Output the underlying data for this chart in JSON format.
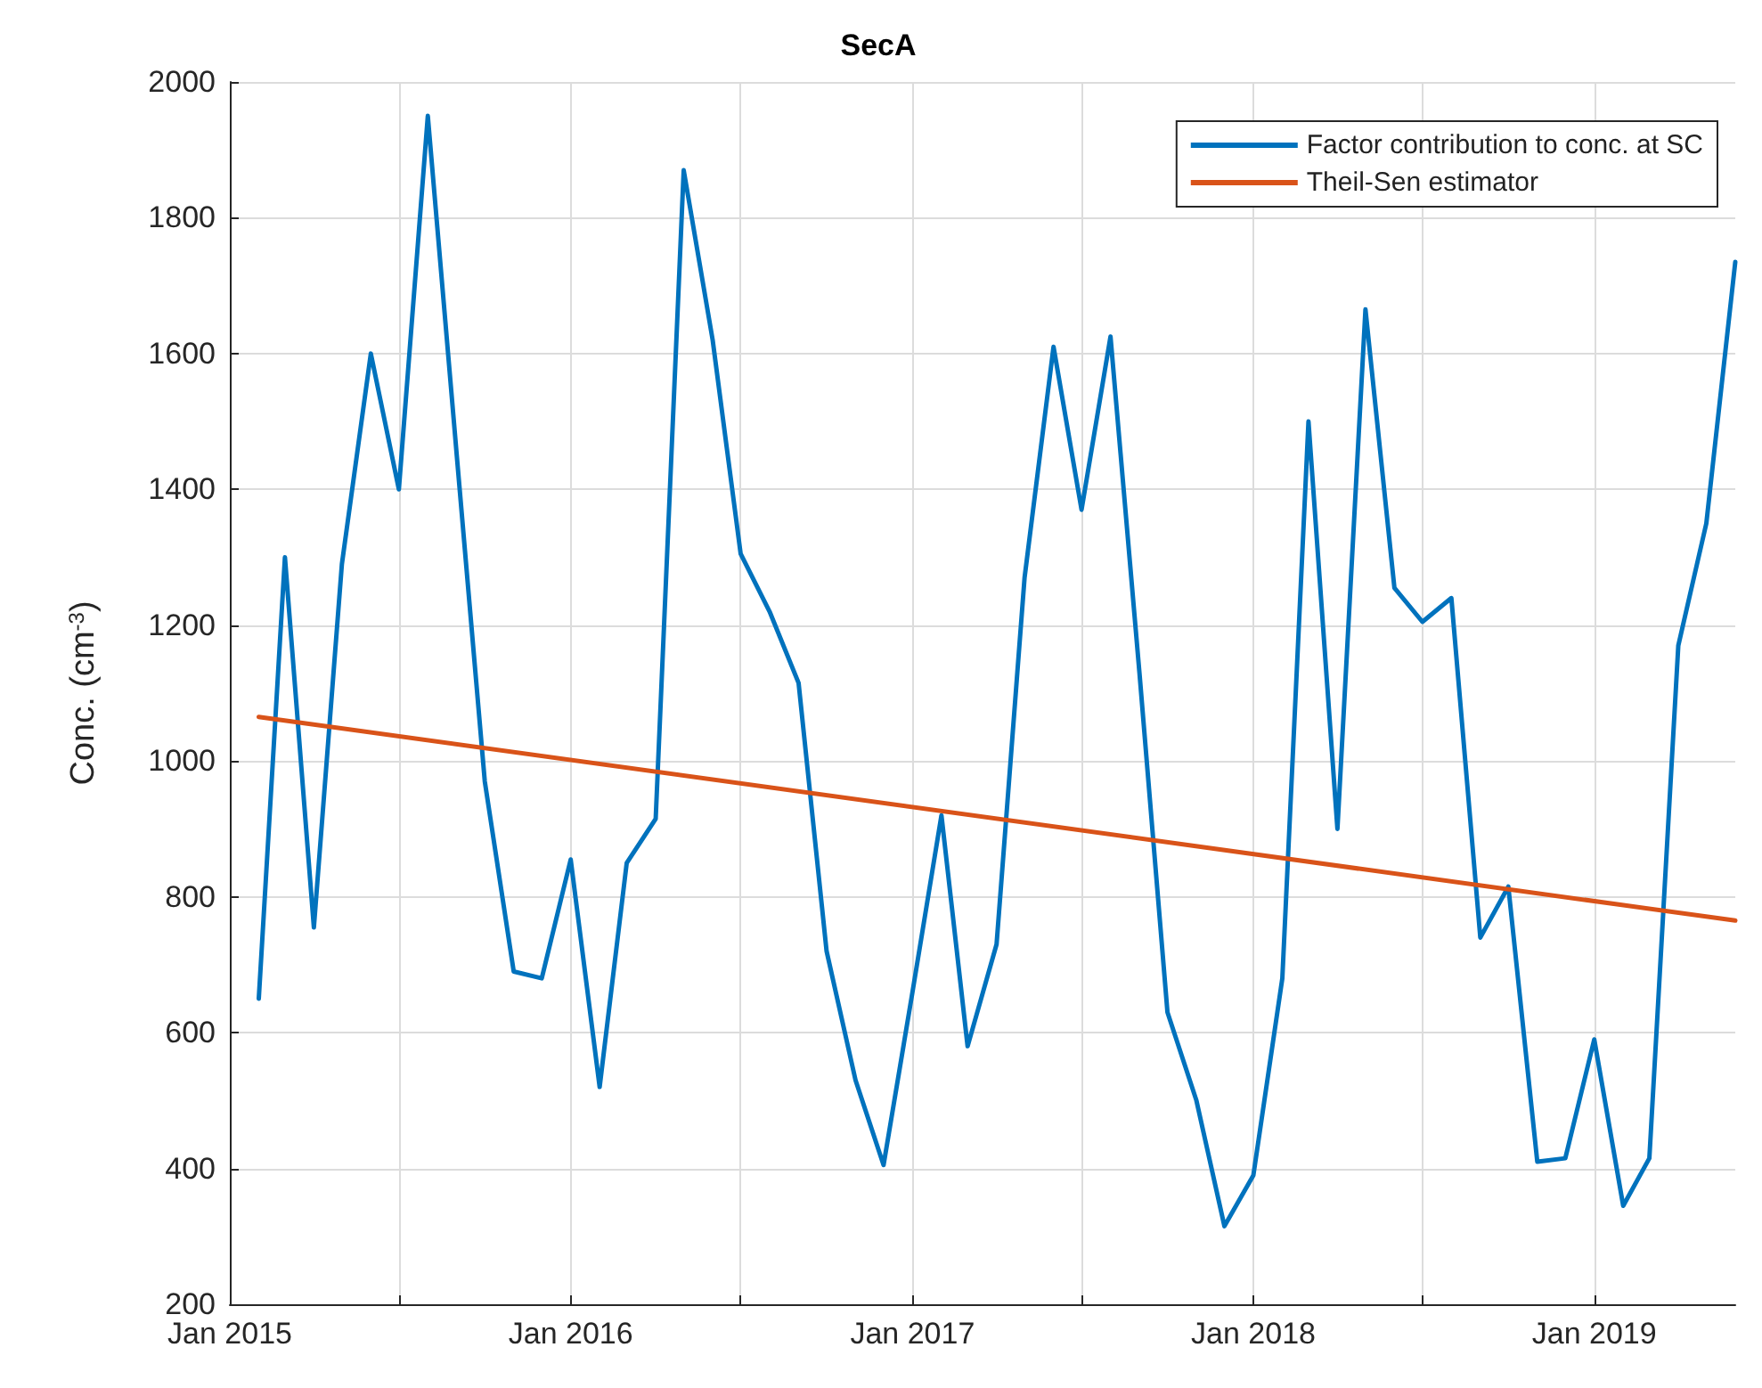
{
  "chart_data": {
    "type": "line",
    "title": "SecA",
    "ylabel": "Conc. (cm$^{-3}$)",
    "x": [
      "2015-02",
      "2015-03",
      "2015-04",
      "2015-05",
      "2015-06",
      "2015-07",
      "2015-08",
      "2015-09",
      "2015-10",
      "2015-11",
      "2015-12",
      "2016-01",
      "2016-02",
      "2016-03",
      "2016-04",
      "2016-05",
      "2016-06",
      "2016-07",
      "2016-08",
      "2016-09",
      "2016-10",
      "2016-11",
      "2016-12",
      "2017-01",
      "2017-02",
      "2017-03",
      "2017-04",
      "2017-05",
      "2017-06",
      "2017-07",
      "2017-08",
      "2017-09",
      "2017-10",
      "2017-11",
      "2017-12",
      "2018-01",
      "2018-02",
      "2018-03",
      "2018-04",
      "2018-05",
      "2018-06",
      "2018-07",
      "2018-08",
      "2018-09",
      "2018-10",
      "2018-11",
      "2018-12",
      "2019-01",
      "2019-02",
      "2019-03",
      "2019-04",
      "2019-05",
      "2019-06"
    ],
    "series": [
      {
        "name": "Factor contribution to conc. at SC",
        "color": "#0072bd",
        "values": [
          650,
          1300,
          755,
          1290,
          1600,
          1400,
          1950,
          1450,
          970,
          690,
          680,
          855,
          520,
          850,
          915,
          1870,
          1620,
          1305,
          1220,
          1115,
          720,
          530,
          405,
          660,
          920,
          580,
          730,
          1270,
          1610,
          1370,
          1625,
          1130,
          630,
          500,
          315,
          390,
          680,
          1500,
          900,
          1665,
          1255,
          1205,
          1240,
          740,
          815,
          410,
          415,
          590,
          345,
          415,
          1170,
          1350,
          1735
        ]
      },
      {
        "name": "Theil-Sen estimator",
        "color": "#d95319",
        "x": [
          "2015-02",
          "2019-06"
        ],
        "values": [
          1065,
          765
        ]
      }
    ],
    "xlim": [
      "2015-01",
      "2019-06"
    ],
    "xticks": [
      {
        "value": "2015-01",
        "label": "Jan 2015"
      },
      {
        "value": "2015-07",
        "label": null
      },
      {
        "value": "2016-01",
        "label": "Jan 2016"
      },
      {
        "value": "2016-07",
        "label": null
      },
      {
        "value": "2017-01",
        "label": "Jan 2017"
      },
      {
        "value": "2017-07",
        "label": null
      },
      {
        "value": "2018-01",
        "label": "Jan 2018"
      },
      {
        "value": "2018-07",
        "label": null
      },
      {
        "value": "2019-01",
        "label": "Jan 2019"
      }
    ],
    "ylim": [
      200,
      2000
    ],
    "yticks": [
      200,
      400,
      600,
      800,
      1000,
      1200,
      1400,
      1600,
      1800,
      2000
    ],
    "grid": true,
    "legend": "top right",
    "marker": "none",
    "line_style": "solid"
  }
}
